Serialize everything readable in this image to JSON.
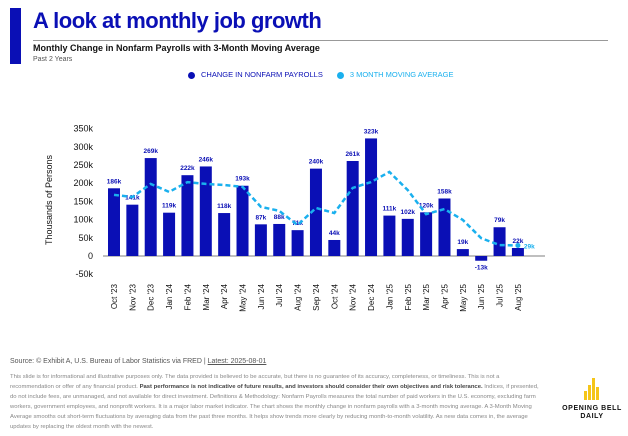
{
  "header": {
    "title": "A look at monthly job growth",
    "subtitle": "Monthly Change in Nonfarm Payrolls with 3-Month Moving Average",
    "period": "Past 2 Years"
  },
  "footer": {
    "source": "Source: © Exhibit A, U.S. Bureau of Labor Statistics via FRED | ",
    "latest": "Latest: 2025-08-01",
    "disclaimer_1": "This slide is for informational and illustrative purposes only. The data provided is believed to be accurate, but there is no guarantee of its accuracy, completeness, or timeliness. This is not a recommendation or offer of any financial product. ",
    "disclaimer_bold": "Past performance is not indicative of future results, and investors should consider their own objectives and risk tolerance.",
    "disclaimer_2": " Indices, if presented, do not include fees, are unmanaged, and not available for direct investment. Definitions & Methodology: Nonfarm Payrolls measures the total number of paid workers in the U.S. economy, excluding farm workers, government employees, and nonprofit workers. It is a major labor market indicator. The chart shows the monthly change in nonfarm payrolls with a 3-month moving average. A 3-Month Moving Average smooths out short-term fluctuations by averaging data from the past three months. It helps show trends more clearly by reducing month-to-month volatility. As new data comes in, the average updates by replacing the oldest month with the newest.",
    "logo_line1": "OPENING BELL",
    "logo_line2": "DAILY"
  },
  "colors": {
    "bar": "#0a0fb5",
    "ma": "#1ab0ee",
    "title": "#0a0fb5",
    "logo": "#f5c518"
  },
  "chart_data": {
    "type": "bar",
    "ylabel": "Thousands of Persons",
    "ylim": [
      -50,
      350
    ],
    "yticks": [
      -50,
      0,
      50,
      100,
      150,
      200,
      250,
      300,
      350
    ],
    "ytick_labels": [
      "-50k",
      "0",
      "50k",
      "100k",
      "150k",
      "200k",
      "250k",
      "300k",
      "350k"
    ],
    "categories": [
      "Oct '23",
      "Nov '23",
      "Dec '23",
      "Jan '24",
      "Feb '24",
      "Mar '24",
      "Apr '24",
      "May '24",
      "Jun '24",
      "Jul '24",
      "Aug '24",
      "Sep '24",
      "Oct '24",
      "Nov '24",
      "Dec '24",
      "Jan '25",
      "Feb '25",
      "Mar '25",
      "Apr '25",
      "May '25",
      "Jun '25",
      "Jul '25",
      "Aug '25"
    ],
    "legend": [
      "CHANGE IN NONFARM PAYROLLS",
      "3 MONTH MOVING AVERAGE"
    ],
    "series": [
      {
        "name": "CHANGE IN NONFARM PAYROLLS",
        "type": "bar",
        "values": [
          186,
          141,
          269,
          119,
          222,
          246,
          118,
          193,
          87,
          88,
          71,
          240,
          44,
          261,
          323,
          111,
          102,
          120,
          158,
          19,
          -13,
          79,
          22
        ],
        "labels": [
          "186k",
          "141k",
          "269k",
          "119k",
          "222k",
          "246k",
          "118k",
          "193k",
          "87k",
          "88k",
          "71k",
          "240k",
          "44k",
          "261k",
          "323k",
          "111k",
          "102k",
          "120k",
          "158k",
          "19k",
          "-13k",
          "79k",
          "22k"
        ]
      },
      {
        "name": "3 MONTH MOVING AVERAGE",
        "type": "line",
        "values": [
          168,
          162,
          198,
          176,
          203,
          198,
          195,
          190,
          135,
          124,
          85,
          132,
          118,
          187,
          203,
          231,
          181,
          115,
          129,
          99,
          49,
          30,
          29
        ],
        "end_label": "29k"
      }
    ]
  }
}
